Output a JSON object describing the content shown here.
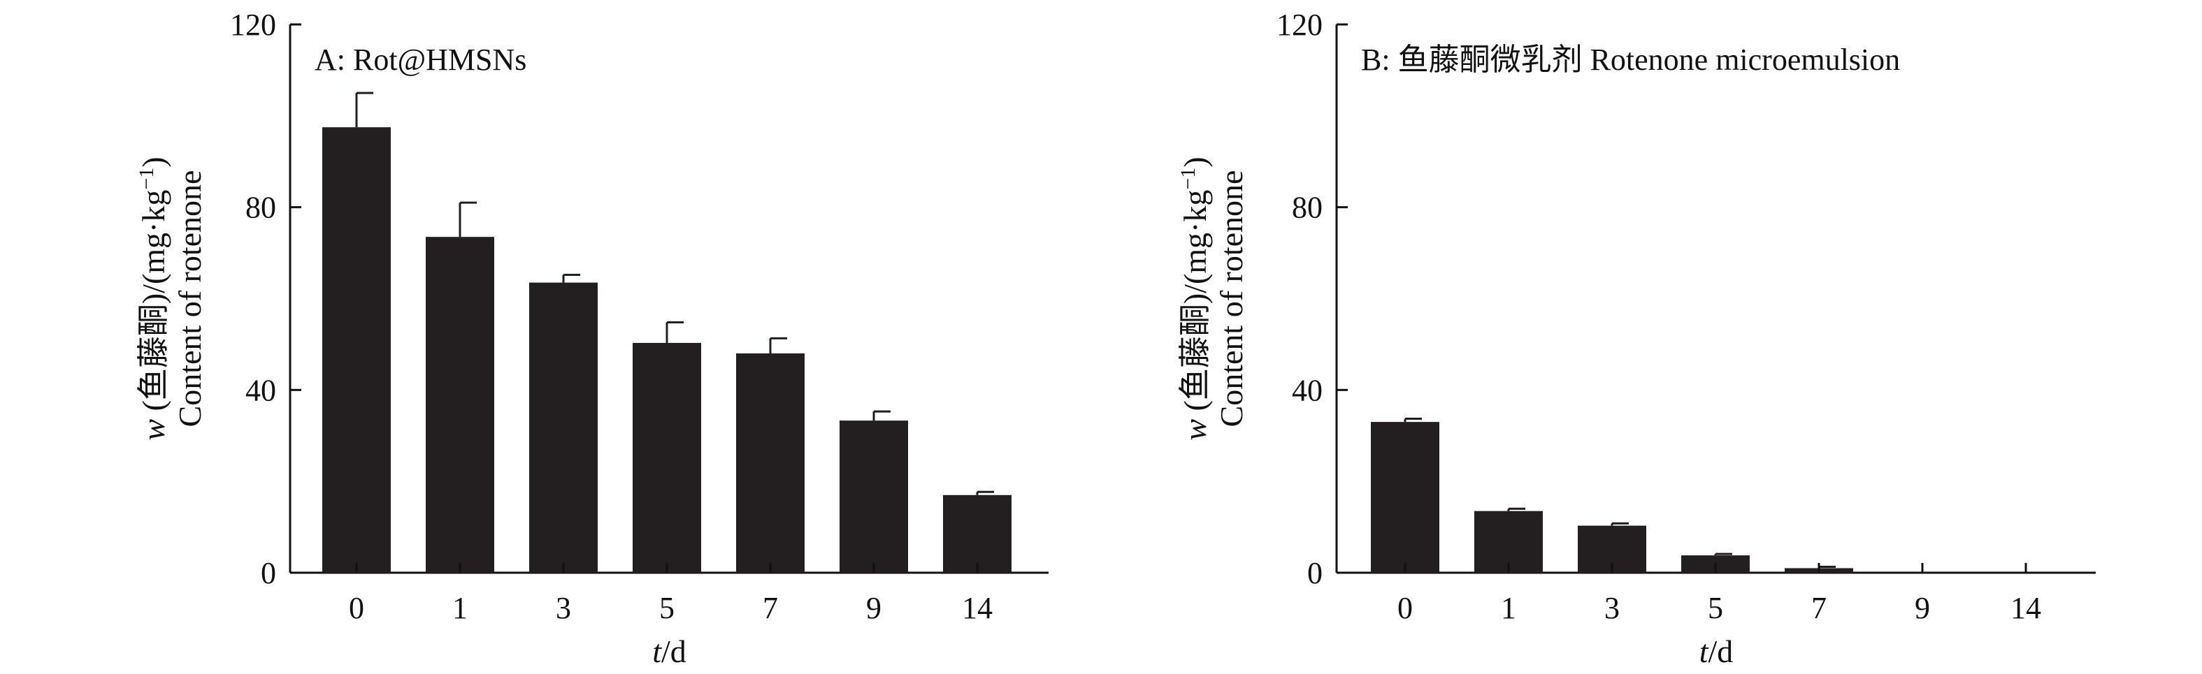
{
  "chart_data": [
    {
      "type": "bar",
      "panel_label": "A: Rot@HMSNs",
      "categories": [
        "0",
        "1",
        "3",
        "5",
        "7",
        "9",
        "14"
      ],
      "values": [
        97.5,
        73.5,
        63.5,
        50.3,
        48.0,
        33.3,
        17.0
      ],
      "errors": [
        7.5,
        7.5,
        1.7,
        4.5,
        3.3,
        2.0,
        0.7
      ],
      "xlabel": "t/d",
      "xlabel_parts": {
        "italic": "t",
        "rest": "/d"
      },
      "ylabel_line1_parts": {
        "italic": "w",
        "rest": " (鱼藤酮)/(mg·kg",
        "sup": "−1",
        "end": ")"
      },
      "ylabel_line2": "Content of rotenone",
      "ylim": [
        0,
        120
      ],
      "yticks": [
        "0",
        "40",
        "80",
        "120"
      ]
    },
    {
      "type": "bar",
      "panel_label": "B: 鱼藤酮微乳剂 Rotenone microemulsion",
      "categories": [
        "0",
        "1",
        "3",
        "5",
        "7",
        "9",
        "14"
      ],
      "values": [
        33.0,
        13.5,
        10.3,
        3.8,
        1.0,
        0,
        0
      ],
      "errors": [
        0.7,
        0.5,
        0.5,
        0.3,
        0.3,
        0,
        0
      ],
      "xlabel": "t/d",
      "xlabel_parts": {
        "italic": "t",
        "rest": "/d"
      },
      "ylabel_line1_parts": {
        "italic": "w",
        "rest": " (鱼藤酮)/(mg·kg",
        "sup": "−1",
        "end": ")"
      },
      "ylabel_line2": "Content of rotenone",
      "ylim": [
        0,
        120
      ],
      "yticks": [
        "0",
        "40",
        "80",
        "120"
      ]
    }
  ]
}
